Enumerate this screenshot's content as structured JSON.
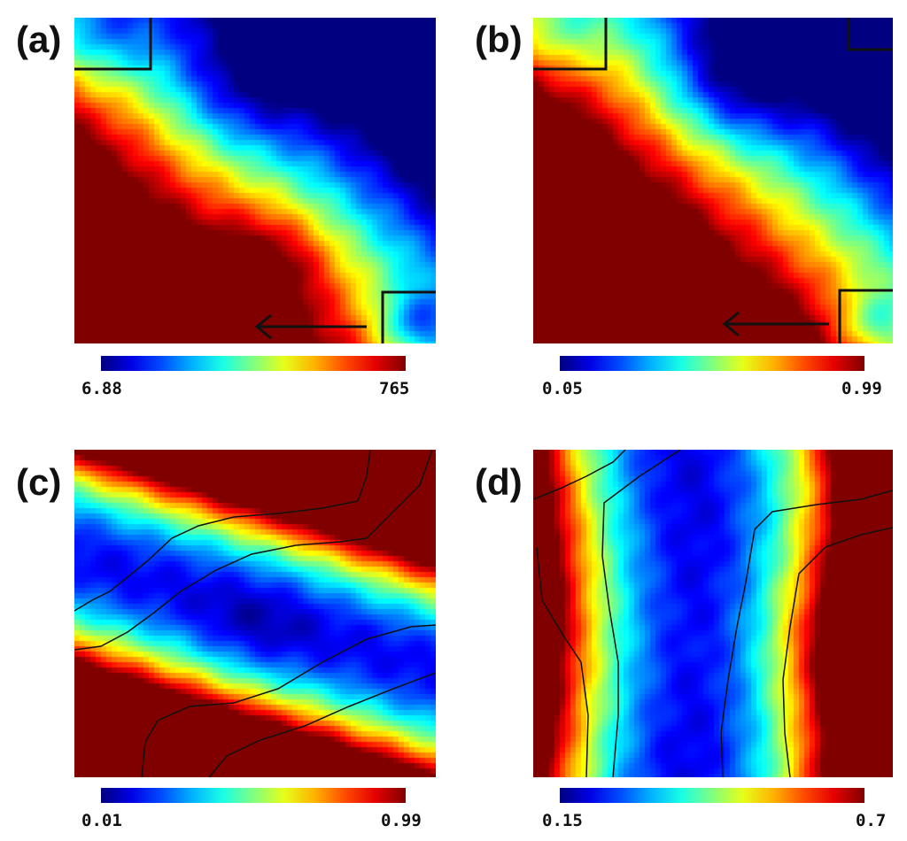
{
  "chart_data": [
    {
      "panel": "(a)",
      "type": "heatmap",
      "colormap": "jet",
      "colorbar": {
        "min": "6.88",
        "max": "765"
      },
      "annotations": [
        "boxes-top-left-bottom-right",
        "arrow-left"
      ]
    },
    {
      "panel": "(b)",
      "type": "heatmap",
      "colormap": "jet",
      "colorbar": {
        "min": "0.05",
        "max": "0.99"
      },
      "annotations": [
        "boxes-top-left-top-right-bottom-right",
        "arrow-left"
      ]
    },
    {
      "panel": "(c)",
      "type": "heatmap",
      "colormap": "jet",
      "colorbar": {
        "min": "0.01",
        "max": "0.99"
      },
      "annotations": [
        "contour-lines"
      ]
    },
    {
      "panel": "(d)",
      "type": "heatmap",
      "colormap": "jet",
      "colorbar": {
        "min": "0.15",
        "max": "0.7"
      },
      "annotations": [
        "contour-lines"
      ]
    }
  ]
}
